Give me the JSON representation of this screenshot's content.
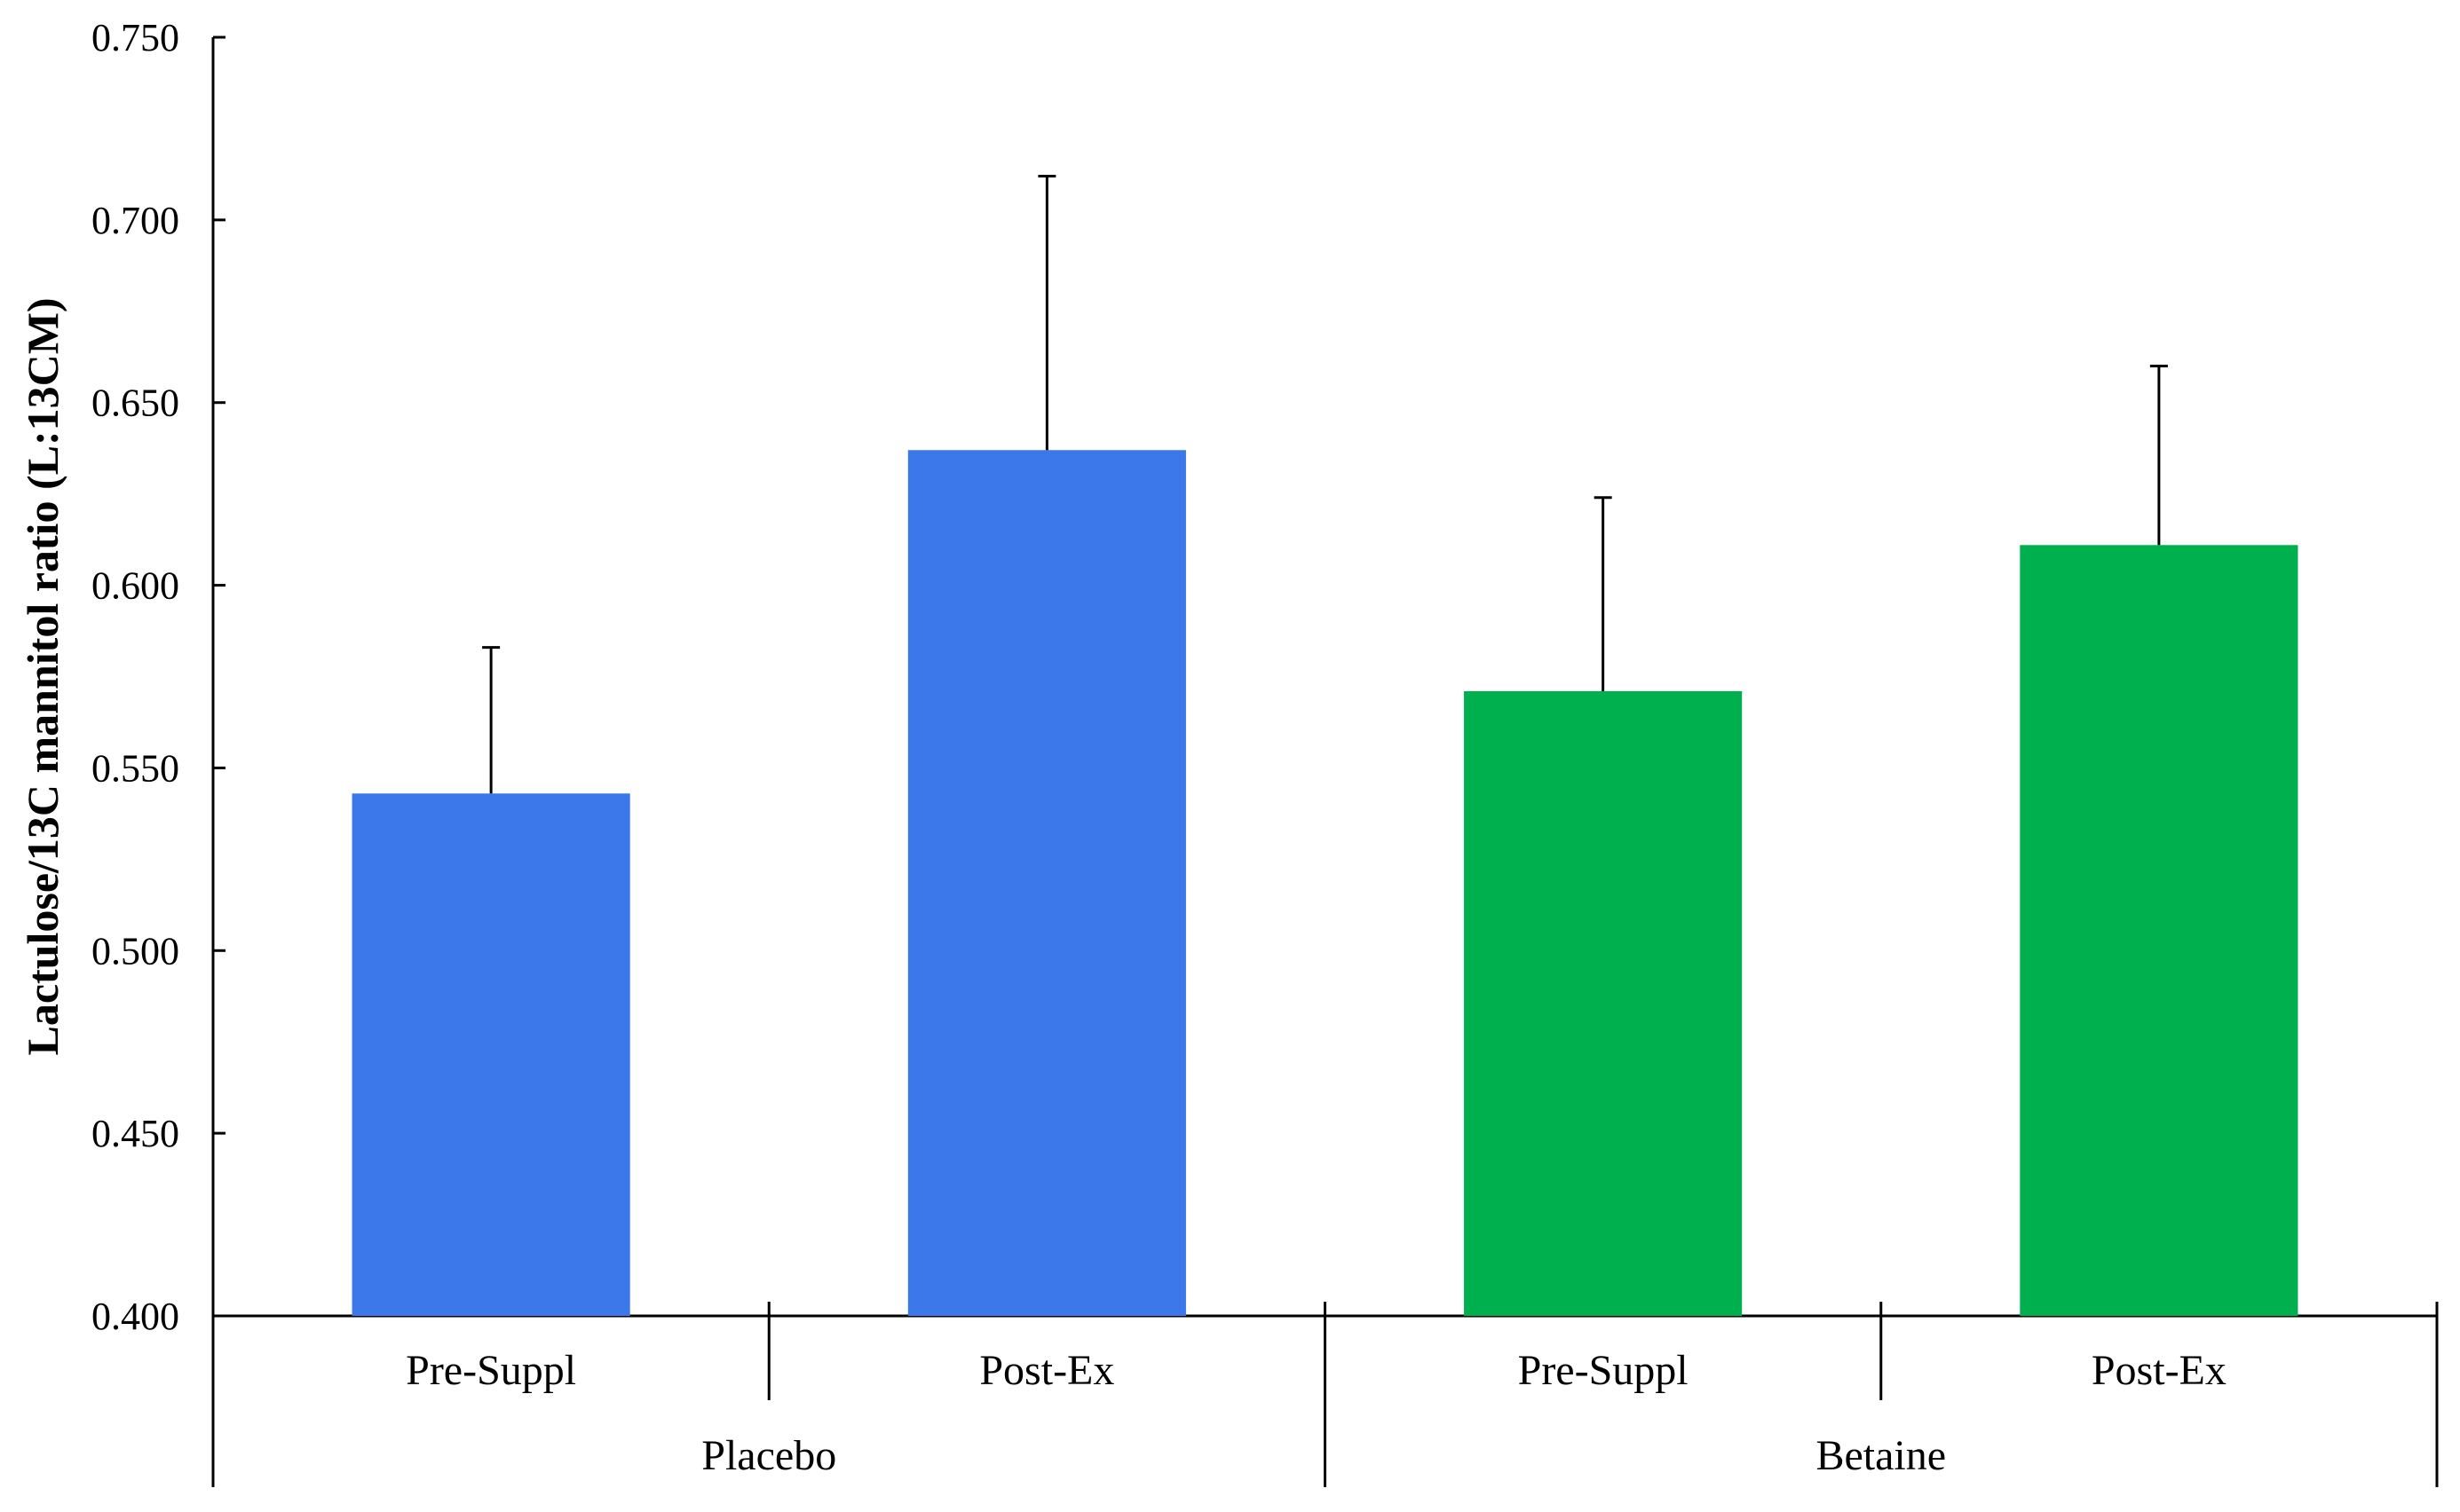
{
  "chart_data": {
    "type": "bar",
    "title": "",
    "xlabel": "",
    "ylabel": "Lactulose/13C mannitol ratio (L:13CM)",
    "ylim": [
      0.4,
      0.75
    ],
    "yticks": [
      "0.400",
      "0.450",
      "0.500",
      "0.550",
      "0.600",
      "0.650",
      "0.700",
      "0.750"
    ],
    "grid": false,
    "legend": "none",
    "groups": [
      {
        "name": "Placebo",
        "color": "#3D78EB",
        "bars": [
          {
            "category": "Pre-Suppl",
            "value": 0.543,
            "error": 0.04
          },
          {
            "category": "Post-Ex",
            "value": 0.637,
            "error": 0.075
          }
        ]
      },
      {
        "name": "Betaine",
        "color": "#00B04F",
        "bars": [
          {
            "category": "Pre-Suppl",
            "value": 0.571,
            "error": 0.053
          },
          {
            "category": "Post-Ex",
            "value": 0.611,
            "error": 0.049
          }
        ]
      }
    ]
  }
}
